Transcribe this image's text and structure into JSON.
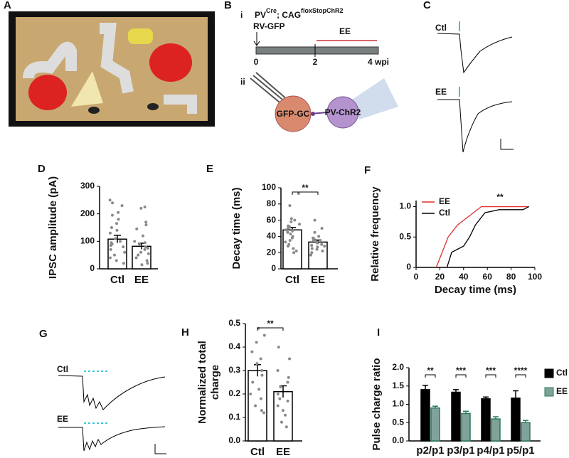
{
  "photo": {
    "panel": "A"
  },
  "schematic": {
    "panel": "B",
    "part1": "i",
    "line1": "PV",
    "sup1": "Cre",
    "line1b": "; CAG",
    "sup2": "floxStopChR2",
    "virus": "RV-GFP",
    "condition": "EE",
    "t0": "0",
    "t2": "2",
    "t4": "4 wpi",
    "part2": "ii",
    "cell1": "GFP-GC",
    "cell2": "PV-ChR2"
  },
  "traces_c": {
    "panel": "C",
    "labels": [
      "Ctl",
      "EE"
    ]
  },
  "traces_g": {
    "panel": "G",
    "labels": [
      "Ctl",
      "EE"
    ]
  },
  "chart_data": [
    {
      "type": "bar",
      "panel": "D",
      "ylabel": [
        "IPSC amplitude (pA)"
      ],
      "categories": [
        "Ctl",
        "EE"
      ],
      "values": [
        108,
        82
      ],
      "errors": [
        14,
        11
      ],
      "color": "#ffffff",
      "points": [
        [
          250,
          240,
          230,
          205,
          195,
          180,
          165,
          150,
          140,
          130,
          110,
          100,
          95,
          90,
          85,
          80,
          70,
          60,
          50,
          40,
          30,
          20
        ],
        [
          225,
          220,
          170,
          160,
          145,
          120,
          100,
          95,
          90,
          80,
          75,
          70,
          60,
          55,
          50,
          40,
          30,
          20,
          15
        ]
      ],
      "ylim": [
        0,
        300
      ],
      "yticks": [
        0,
        100,
        200,
        300
      ]
    },
    {
      "type": "bar",
      "panel": "E",
      "ylabel": [
        "Decay time (ms)"
      ],
      "categories": [
        "Ctl",
        "EE"
      ],
      "values": [
        48,
        33
      ],
      "errors": [
        3,
        2.5
      ],
      "color": "#ffffff",
      "annotation": "**",
      "points": [
        [
          93,
          78,
          62,
          60,
          58,
          55,
          53,
          52,
          50,
          48,
          47,
          45,
          43,
          40,
          38,
          35,
          33,
          30,
          28,
          25,
          22,
          20
        ],
        [
          60,
          50,
          45,
          40,
          38,
          37,
          35,
          33,
          32,
          30,
          29,
          28,
          27,
          25,
          24,
          22,
          20,
          17
        ]
      ],
      "ylim": [
        0,
        100
      ],
      "yticks": [
        0,
        20,
        40,
        60,
        80,
        100
      ]
    },
    {
      "type": "line",
      "panel": "F",
      "ylabel": [
        "Relative frequency"
      ],
      "xlabel": "Decay time (ms)",
      "annotation": "**",
      "legend": "upper left",
      "series": [
        {
          "name": "EE",
          "color": "#e0312f",
          "x": [
            17,
            22,
            27,
            35,
            45,
            55,
            95
          ],
          "values": [
            0,
            0.25,
            0.5,
            0.7,
            0.85,
            1,
            1
          ]
        },
        {
          "name": "Ctl",
          "color": "#000000",
          "x": [
            26,
            30,
            35,
            40,
            45,
            50,
            58,
            70,
            90,
            95
          ],
          "values": [
            0,
            0.25,
            0.3,
            0.35,
            0.5,
            0.7,
            0.9,
            0.95,
            0.95,
            1
          ]
        }
      ],
      "xlim": [
        0,
        100
      ],
      "xticks": [
        0,
        20,
        40,
        60,
        80,
        100
      ],
      "ylim": [
        0,
        1.1
      ],
      "yticks": [
        0,
        0.5,
        {
          "value": 1,
          "label": "1.0"
        }
      ]
    },
    {
      "type": "bar",
      "panel": "H",
      "ylabel": [
        "Normalized total",
        "charge"
      ],
      "categories": [
        "Ctl",
        "EE"
      ],
      "values": [
        0.3,
        0.21
      ],
      "errors": [
        0.025,
        0.025
      ],
      "color": "#ffffff",
      "annotation": "**",
      "points": [
        [
          0.48,
          0.45,
          0.42,
          0.38,
          0.35,
          0.33,
          0.3,
          0.28,
          0.25,
          0.22,
          0.2,
          0.18,
          0.15,
          0.13,
          0.12
        ],
        [
          0.4,
          0.35,
          0.3,
          0.27,
          0.25,
          0.23,
          0.2,
          0.18,
          0.17,
          0.15,
          0.13,
          0.11,
          0.08,
          0.06
        ]
      ],
      "ylim": [
        0,
        0.5
      ],
      "yticks": [
        {
          "value": 0,
          "label": "0.0"
        },
        0.1,
        0.2,
        0.3,
        0.4,
        0.5
      ]
    },
    {
      "type": "grouped-bar",
      "panel": "I",
      "ylabel": [
        "Pulse charge ratio"
      ],
      "categories": [
        "p2/p1",
        "p3/p1",
        "p4/p1",
        "p5/p1"
      ],
      "annotations": [
        "**",
        "***",
        "***",
        "****"
      ],
      "legend": "right",
      "series": [
        {
          "name": "Ctl",
          "color": "#000000",
          "values": [
            1.4,
            1.33,
            1.15,
            1.17
          ],
          "errors": [
            0.12,
            0.07,
            0.05,
            0.2
          ]
        },
        {
          "name": "EE",
          "color": "#7fa39a",
          "values": [
            0.9,
            0.75,
            0.6,
            0.5
          ],
          "errors": [
            0.05,
            0.06,
            0.06,
            0.06
          ]
        }
      ],
      "ylim": [
        0,
        2.0
      ],
      "yticks": [
        {
          "value": 0,
          "label": "0.0"
        },
        0.5,
        {
          "value": 1,
          "label": "1.0"
        },
        1.5,
        {
          "value": 2,
          "label": "2.0"
        }
      ]
    }
  ]
}
